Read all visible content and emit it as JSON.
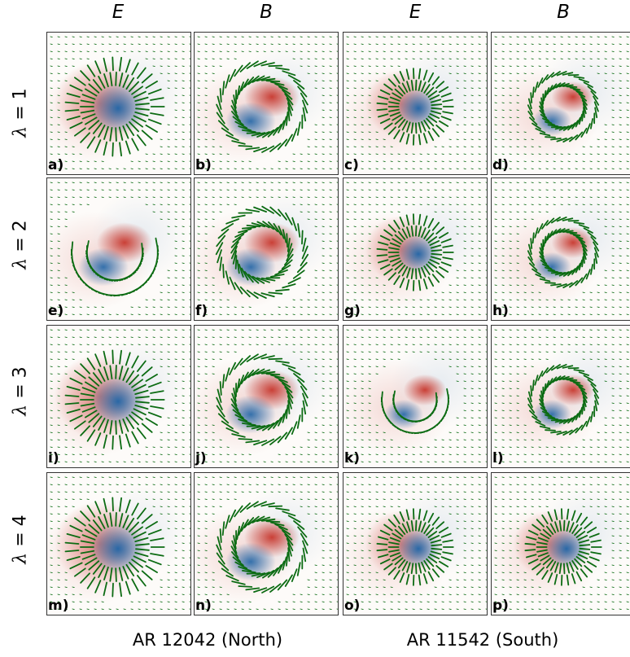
{
  "columns": {
    "c1": "E",
    "c2": "B",
    "c3": "E",
    "c4": "B"
  },
  "rows": [
    {
      "lambda": "λ",
      "value": "= 1"
    },
    {
      "lambda": "λ",
      "value": "= 2"
    },
    {
      "lambda": "λ",
      "value": "= 3"
    },
    {
      "lambda": "λ",
      "value": "= 4"
    }
  ],
  "footers": {
    "north": "AR 12042 (North)",
    "south": "AR 11542 (South)"
  },
  "colors": {
    "positive": "#c8372d",
    "negative": "#1f64a6",
    "vectors": "#0b6b12"
  },
  "panels": [
    {
      "label": "a)",
      "type": "radial"
    },
    {
      "label": "b)",
      "type": "swirl_cw"
    },
    {
      "label": "c)",
      "type": "radial_small"
    },
    {
      "label": "d)",
      "type": "swirl_small"
    },
    {
      "label": "e)",
      "type": "arc"
    },
    {
      "label": "f)",
      "type": "swirl_ccw"
    },
    {
      "label": "g)",
      "type": "radial_small"
    },
    {
      "label": "h)",
      "type": "swirl_small"
    },
    {
      "label": "i)",
      "type": "radial"
    },
    {
      "label": "j)",
      "type": "swirl_cw"
    },
    {
      "label": "k)",
      "type": "arc_small"
    },
    {
      "label": "l)",
      "type": "swirl_small"
    },
    {
      "label": "m)",
      "type": "radial"
    },
    {
      "label": "n)",
      "type": "swirl_cw"
    },
    {
      "label": "o)",
      "type": "radial_small"
    },
    {
      "label": "p)",
      "type": "radial_small"
    }
  ]
}
